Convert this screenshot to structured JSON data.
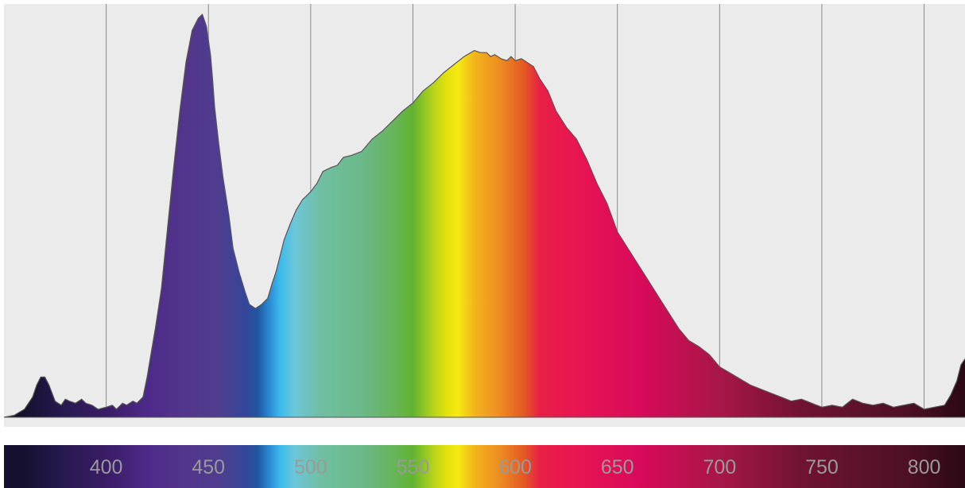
{
  "chart_data": {
    "type": "area",
    "title": "",
    "xlabel": "",
    "ylabel": "",
    "xlim": [
      350,
      820
    ],
    "ylim": [
      0,
      1
    ],
    "grid": "vertical",
    "x_ticks": [
      400,
      450,
      500,
      550,
      600,
      650,
      700,
      750,
      800
    ],
    "tick_labels": [
      "400",
      "450",
      "500",
      "550",
      "600",
      "650",
      "700",
      "750",
      "800"
    ],
    "series": [
      {
        "x": [
          350,
          355,
          360,
          364,
          366,
          368,
          370,
          372,
          375,
          378,
          380,
          382,
          385,
          388,
          390,
          393,
          396,
          400,
          403,
          405,
          408,
          410,
          413,
          415,
          418,
          420,
          422,
          424,
          427,
          430,
          433,
          436,
          439,
          442,
          445,
          447,
          449,
          451,
          452,
          453,
          455,
          457,
          460,
          462,
          465,
          468,
          470,
          473,
          476,
          479,
          481,
          483,
          485,
          487,
          490,
          493,
          496,
          500,
          503,
          506,
          510,
          513,
          516,
          520,
          525,
          530,
          535,
          540,
          545,
          550,
          555,
          560,
          565,
          570,
          575,
          580,
          583,
          586,
          588,
          590,
          593,
          596,
          598,
          600,
          603,
          606,
          609,
          612,
          616,
          620,
          625,
          630,
          635,
          640,
          645,
          650,
          655,
          660,
          665,
          670,
          675,
          680,
          685,
          690,
          695,
          700,
          705,
          710,
          715,
          720,
          725,
          730,
          735,
          740,
          745,
          750,
          755,
          760,
          765,
          770,
          775,
          780,
          785,
          790,
          795,
          800,
          805,
          810,
          813,
          816,
          818,
          820
        ],
        "y": [
          0.0,
          0.005,
          0.02,
          0.05,
          0.08,
          0.1,
          0.1,
          0.08,
          0.04,
          0.03,
          0.045,
          0.04,
          0.035,
          0.045,
          0.035,
          0.03,
          0.02,
          0.025,
          0.03,
          0.02,
          0.035,
          0.03,
          0.04,
          0.035,
          0.05,
          0.1,
          0.16,
          0.22,
          0.32,
          0.47,
          0.62,
          0.76,
          0.88,
          0.96,
          0.99,
          1.0,
          0.97,
          0.9,
          0.84,
          0.77,
          0.68,
          0.6,
          0.5,
          0.42,
          0.36,
          0.31,
          0.28,
          0.27,
          0.28,
          0.295,
          0.33,
          0.36,
          0.4,
          0.44,
          0.48,
          0.515,
          0.54,
          0.56,
          0.58,
          0.61,
          0.62,
          0.625,
          0.645,
          0.65,
          0.66,
          0.69,
          0.71,
          0.735,
          0.76,
          0.78,
          0.81,
          0.83,
          0.855,
          0.875,
          0.895,
          0.91,
          0.905,
          0.905,
          0.895,
          0.9,
          0.89,
          0.885,
          0.895,
          0.885,
          0.89,
          0.88,
          0.87,
          0.84,
          0.81,
          0.76,
          0.72,
          0.69,
          0.64,
          0.58,
          0.53,
          0.46,
          0.42,
          0.38,
          0.34,
          0.3,
          0.26,
          0.22,
          0.19,
          0.175,
          0.155,
          0.125,
          0.11,
          0.095,
          0.08,
          0.07,
          0.06,
          0.05,
          0.04,
          0.045,
          0.035,
          0.025,
          0.03,
          0.025,
          0.045,
          0.035,
          0.03,
          0.035,
          0.025,
          0.03,
          0.035,
          0.02,
          0.025,
          0.03,
          0.055,
          0.09,
          0.13,
          0.145
        ]
      }
    ],
    "colors": {
      "plot_background": "#ebebeb",
      "gridline": "#8a8a8a",
      "curve_stroke": "#555555",
      "tick_label": "#9a9a9a",
      "spectrum_stops": [
        [
          360,
          "#151030"
        ],
        [
          380,
          "#281a52"
        ],
        [
          400,
          "#3a1c66"
        ],
        [
          420,
          "#4d2a8a"
        ],
        [
          440,
          "#52368c"
        ],
        [
          455,
          "#4f3d8e"
        ],
        [
          468,
          "#34469a"
        ],
        [
          474,
          "#1f579e"
        ],
        [
          480,
          "#2a8cd6"
        ],
        [
          485,
          "#3bbbec"
        ],
        [
          492,
          "#6cc6d8"
        ],
        [
          505,
          "#70bfa2"
        ],
        [
          525,
          "#6bb98a"
        ],
        [
          540,
          "#67b55c"
        ],
        [
          550,
          "#62b330"
        ],
        [
          560,
          "#b6d418"
        ],
        [
          567,
          "#e6e20a"
        ],
        [
          572,
          "#f7ea12"
        ],
        [
          580,
          "#f3b51c"
        ],
        [
          592,
          "#ee8e22"
        ],
        [
          604,
          "#e35a24"
        ],
        [
          612,
          "#e81f48"
        ],
        [
          630,
          "#e81552"
        ],
        [
          660,
          "#d90a5a"
        ],
        [
          700,
          "#a81648"
        ],
        [
          740,
          "#701333"
        ],
        [
          790,
          "#4f1025"
        ],
        [
          820,
          "#2a0814"
        ]
      ]
    }
  }
}
